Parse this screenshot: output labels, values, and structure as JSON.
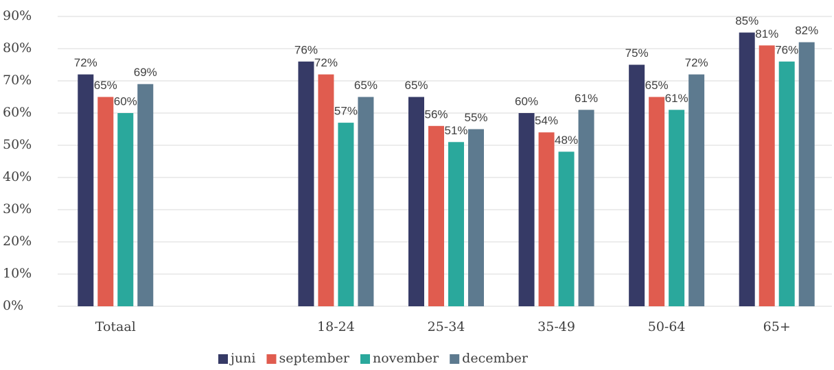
{
  "chart_data": {
    "type": "bar",
    "categories": [
      "Totaal",
      null,
      "18-24",
      "25-34",
      "35-49",
      "50-64",
      "65+"
    ],
    "series": [
      {
        "name": "juni",
        "color": "#363a66",
        "values": [
          72,
          null,
          76,
          65,
          60,
          75,
          85
        ],
        "value_labels": [
          "72%",
          null,
          "76%",
          "65%",
          "60%",
          "75%",
          "85%"
        ]
      },
      {
        "name": "september",
        "color": "#e05c4f",
        "values": [
          65,
          null,
          72,
          56,
          54,
          65,
          81
        ],
        "value_labels": [
          "65%",
          null,
          "72%",
          "56%",
          "54%",
          "65%",
          "81%"
        ]
      },
      {
        "name": "november",
        "color": "#2aa89c",
        "values": [
          60,
          null,
          57,
          51,
          48,
          61,
          76
        ],
        "value_labels": [
          "60%",
          null,
          "57%",
          "51%",
          "48%",
          "61%",
          "76%"
        ]
      },
      {
        "name": "december",
        "color": "#5d7a8f",
        "values": [
          69,
          null,
          65,
          55,
          61,
          72,
          82
        ],
        "value_labels": [
          "69%",
          null,
          "65%",
          "55%",
          "61%",
          "72%",
          "82%"
        ]
      }
    ],
    "ylim": [
      0,
      90
    ],
    "yticks": [
      {
        "value": 0,
        "label": "0%"
      },
      {
        "value": 10,
        "label": "10%"
      },
      {
        "value": 20,
        "label": "20%"
      },
      {
        "value": 30,
        "label": "30%"
      },
      {
        "value": 40,
        "label": "40%"
      },
      {
        "value": 50,
        "label": "50%"
      },
      {
        "value": 60,
        "label": "60%"
      },
      {
        "value": 70,
        "label": "70%"
      },
      {
        "value": 80,
        "label": "80%"
      },
      {
        "value": 90,
        "label": "90%"
      }
    ],
    "grid": true,
    "legend": "bottom"
  }
}
